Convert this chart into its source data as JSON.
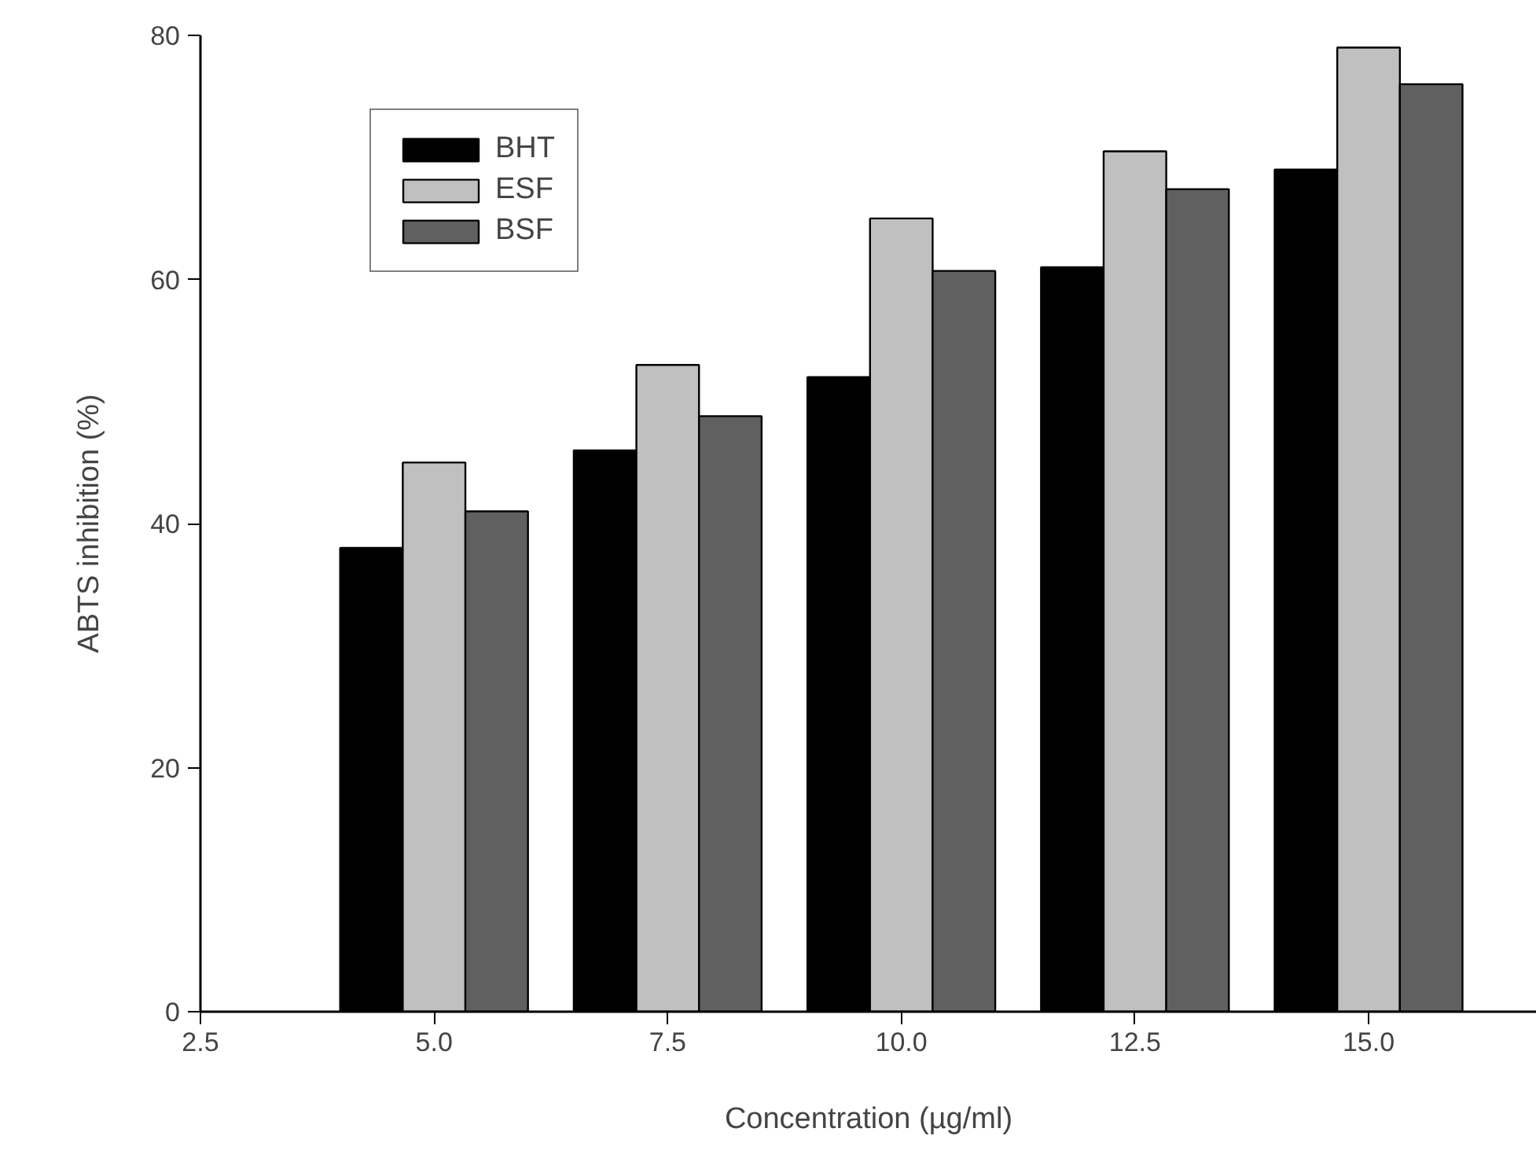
{
  "chart_data": {
    "type": "bar",
    "xlabel": "Concentration (µg/ml)",
    "ylabel": "ABTS inhibition (%)",
    "x": [
      5.0,
      7.5,
      10.0,
      12.5,
      15.0
    ],
    "series": [
      {
        "name": "BHT",
        "color": "#000000",
        "values": [
          38,
          46,
          52,
          61,
          69
        ]
      },
      {
        "name": "ESF",
        "color": "#c0c0c0",
        "values": [
          45,
          53,
          65,
          70.5,
          79
        ]
      },
      {
        "name": "BSF",
        "color": "#606060",
        "values": [
          41,
          48.8,
          60.7,
          67.4,
          76
        ]
      }
    ],
    "xlim": [
      2.5,
      16.8
    ],
    "ylim": [
      0,
      80
    ],
    "xticks": [
      {
        "value": 2.5,
        "label": "2.5"
      },
      {
        "value": 5,
        "label": "5.0"
      },
      {
        "value": 7.5,
        "label": "7.5"
      },
      {
        "value": 10,
        "label": "10.0"
      },
      {
        "value": 12.5,
        "label": "12.5"
      },
      {
        "value": 15,
        "label": "15.0"
      }
    ],
    "yticks": [
      0,
      20,
      40,
      60,
      80
    ],
    "grid": false,
    "legend": "top left"
  }
}
